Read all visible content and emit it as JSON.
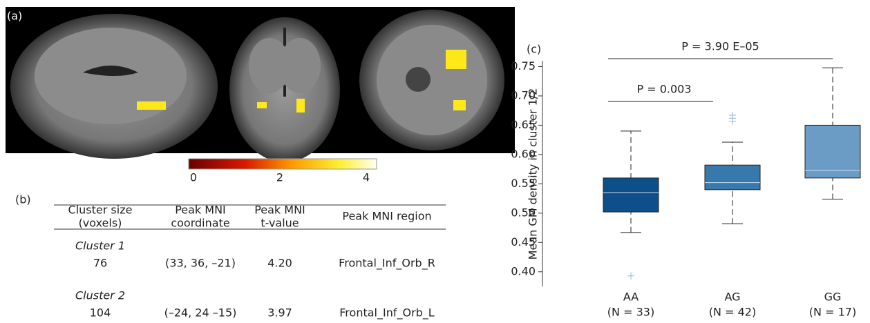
{
  "panel_a": {
    "label": "(a)",
    "colorbar": {
      "ticks": [
        0,
        2,
        4
      ]
    }
  },
  "panel_b": {
    "label": "(b)",
    "table": {
      "header": [
        [
          "Cluster size",
          "(voxels)"
        ],
        [
          "Peak MNI",
          "coordinate"
        ],
        [
          "Peak MNI",
          "t-value"
        ],
        [
          "Peak MNI region"
        ]
      ],
      "groups": [
        {
          "name": "Cluster 1",
          "row": [
            "76",
            "(33, 36, –21)",
            "4.20",
            "Frontal_Inf_Orb_R"
          ]
        },
        {
          "name": "Cluster 2",
          "row": [
            "104",
            "(–24, 24 –15)",
            "3.97",
            "Frontal_Inf_Orb_L"
          ]
        }
      ]
    }
  },
  "chart_data": {
    "type": "box",
    "panel_label": "(c)",
    "ylabel": "Mean GM density in cluster 1/2",
    "categories": [
      "AA",
      "AG",
      "GG"
    ],
    "sample_labels": [
      "(N = 33)",
      "(N = 42)",
      "(N = 17)"
    ],
    "colors": [
      "#0d4f88",
      "#3879ad",
      "#6b9cc6"
    ],
    "outlier_color": "#8fb3d3",
    "whisker_low": [
      0.467,
      0.482,
      0.524
    ],
    "q1": [
      0.502,
      0.54,
      0.56
    ],
    "median": [
      0.535,
      0.552,
      0.573
    ],
    "q3": [
      0.56,
      0.582,
      0.65
    ],
    "whisker_high": [
      0.64,
      0.621,
      0.748
    ],
    "outliers": [
      [
        0.393
      ],
      [
        0.657,
        0.662,
        0.667
      ],
      []
    ],
    "ylim": [
      0.375,
      0.76
    ],
    "yticks": [
      {
        "value": 0.4,
        "label": "0.40"
      },
      0.45,
      {
        "value": 0.5,
        "label": "0.50"
      },
      0.55,
      {
        "value": 0.6,
        "label": "0.60"
      },
      0.65,
      {
        "value": 0.7,
        "label": "0.70"
      },
      0.75
    ],
    "annotations": [
      "P = 0.003",
      "P = 3.90 E–05"
    ]
  }
}
